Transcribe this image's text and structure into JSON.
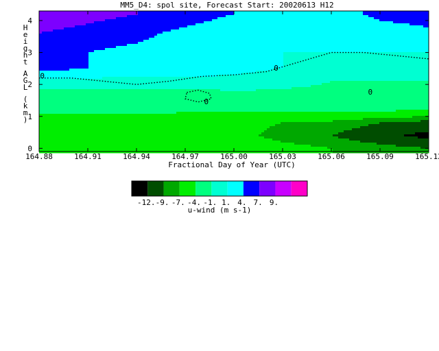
{
  "chart_data": {
    "type": "heatmap",
    "title": "MM5_D4: spol site,  Forecast Start: 20020613 H12",
    "xlabel": "Fractional Day of Year (UTC)",
    "ylabel": "Height AGL (km)",
    "x_ticks": [
      "164.88",
      "164.91",
      "164.94",
      "164.97",
      "165.00",
      "165.03",
      "165.06",
      "165.09",
      "165.12"
    ],
    "y_ticks": [
      "0",
      "1",
      "2",
      "3",
      "4"
    ],
    "xlim": [
      164.88,
      165.12
    ],
    "ylim": [
      -0.1,
      4.3
    ],
    "contour_label": "0",
    "colorbar": {
      "label": "u-wind (m s-1)",
      "tick_labels": [
        "-12.",
        "-9.",
        "-7.",
        "-4.",
        "-1.",
        "1.",
        "4.",
        "7.",
        "9."
      ],
      "colors": [
        "#000000",
        "#004d00",
        "#00a800",
        "#00ee00",
        "#00ff7f",
        "#00ffd2",
        "#00ffff",
        "#0000ff",
        "#7d00ff",
        "#c800ff",
        "#ff00c8"
      ]
    },
    "u_wind_field": {
      "x": [
        164.88,
        164.91,
        164.94,
        164.97,
        165.0,
        165.03,
        165.06,
        165.09,
        165.12
      ],
      "z": [
        4.2,
        3.6,
        3.0,
        2.5,
        2.1,
        1.7,
        1.2,
        0.8,
        0.4,
        0.0
      ],
      "u": [
        [
          9,
          8,
          7,
          6,
          4,
          2,
          2,
          5,
          6
        ],
        [
          7,
          6,
          5,
          3,
          1,
          1,
          1,
          2,
          3
        ],
        [
          6,
          4,
          3,
          2,
          2,
          1,
          1,
          1,
          1
        ],
        [
          5,
          4,
          3,
          2,
          1.5,
          1,
          0,
          -0.5,
          0
        ],
        [
          0,
          0,
          0,
          0.5,
          0.5,
          -0.3,
          -1,
          -1,
          -1
        ],
        [
          -1.5,
          -1.5,
          -1.5,
          -2,
          -1.5,
          -1.5,
          -1.5,
          -1.5,
          -2
        ],
        [
          -3.5,
          -3.5,
          -3.5,
          -3.5,
          -3.5,
          -3.5,
          -3.5,
          -3.5,
          -4
        ],
        [
          -5,
          -5,
          -5,
          -6,
          -6,
          -7,
          -7.5,
          -9,
          -10
        ],
        [
          -4.5,
          -4.5,
          -5,
          -5,
          -6,
          -8,
          -9,
          -11,
          -13
        ],
        [
          -4.5,
          -4.5,
          -5,
          -5,
          -5,
          -6,
          -7,
          -8,
          -9
        ]
      ]
    }
  }
}
